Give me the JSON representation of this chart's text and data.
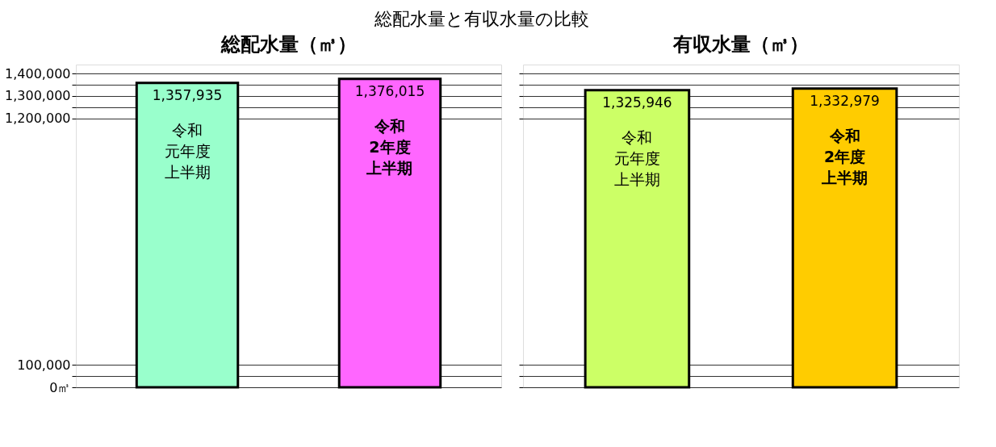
{
  "chart_data": [
    {
      "type": "bar",
      "title": "総配水量（㎥）",
      "annotations": [
        "総配水量と有収水量の比較"
      ],
      "categories": [
        "令和元年度上半期",
        "令和2年度上半期"
      ],
      "values": [
        1357935,
        1376015
      ],
      "value_labels": [
        "1,357,935",
        "1,376,015"
      ],
      "colors": [
        "#99ffcc",
        "#ff66ff"
      ],
      "ylim": [
        0,
        1440000
      ],
      "yticks": [
        {
          "value": 0,
          "label": "0㎥"
        },
        {
          "value": 50000,
          "label": null
        },
        {
          "value": 100000,
          "label": "100,000"
        },
        {
          "value": 1200000,
          "label": "1,200,000"
        },
        {
          "value": 1250000,
          "label": null
        },
        {
          "value": 1300000,
          "label": "1,300,000"
        },
        {
          "value": 1350000,
          "label": null
        },
        {
          "value": 1400000,
          "label": "1,400,000"
        }
      ],
      "grid": "y",
      "tick_labels": "y"
    },
    {
      "type": "bar",
      "title": "有収水量（㎥）",
      "categories": [
        "令和元年度上半期",
        "令和2年度上半期"
      ],
      "values": [
        1325946,
        1332979
      ],
      "value_labels": [
        "1,325,946",
        "1,332,979"
      ],
      "colors": [
        "#ccff66",
        "#ffcc00"
      ],
      "ylim": [
        0,
        1440000
      ],
      "yticks": [
        {
          "value": 0,
          "label": null
        },
        {
          "value": 50000,
          "label": null
        },
        {
          "value": 100000,
          "label": null
        },
        {
          "value": 1200000,
          "label": null
        },
        {
          "value": 1250000,
          "label": null
        },
        {
          "value": 1300000,
          "label": null
        },
        {
          "value": 1350000,
          "label": null
        },
        {
          "value": 1400000,
          "label": null
        }
      ],
      "grid": "y",
      "tick_labels": false
    }
  ]
}
